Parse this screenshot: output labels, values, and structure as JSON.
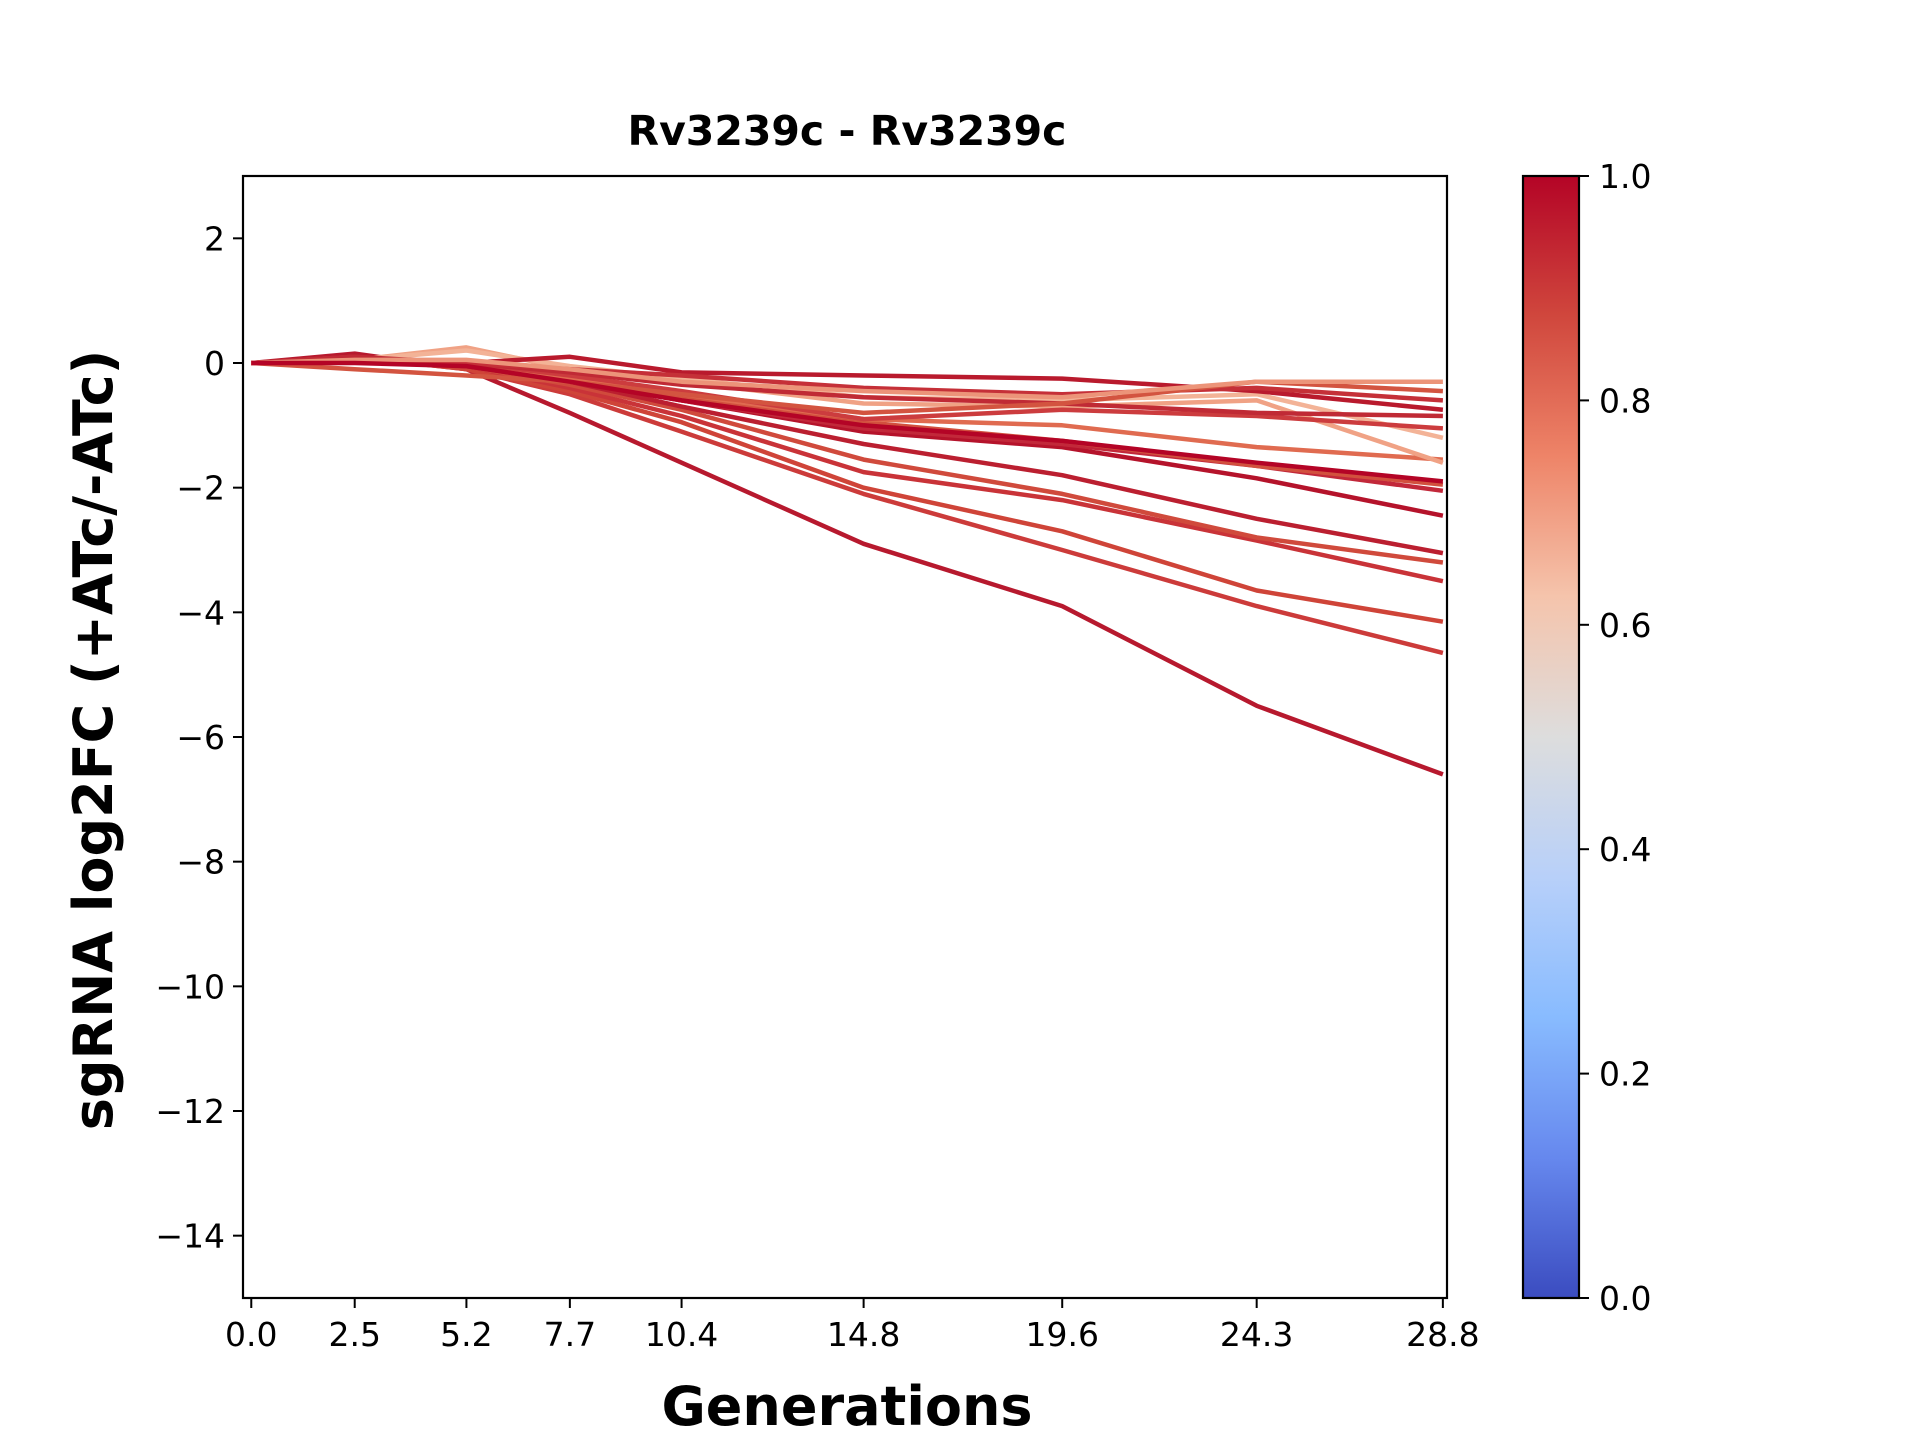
{
  "chart_data": {
    "type": "line",
    "title": "Rv3239c - Rv3239c",
    "xlabel": "Generations",
    "ylabel": "sgRNA log2FC (+ATc/-ATc)",
    "x": [
      0.0,
      2.5,
      5.2,
      7.7,
      10.4,
      14.8,
      19.6,
      24.3,
      28.8
    ],
    "x_tick_labels": [
      "0.0",
      "2.5",
      "5.2",
      "7.7",
      "10.4",
      "14.8",
      "19.6",
      "24.3",
      "28.8"
    ],
    "xlim": [
      -0.2,
      28.9
    ],
    "ylim": [
      -15,
      3
    ],
    "y_ticks": [
      2,
      0,
      -2,
      -4,
      -6,
      -8,
      -10,
      -12,
      -14
    ],
    "y_tick_labels": [
      "2",
      "0",
      "−2",
      "−4",
      "−6",
      "−8",
      "−10",
      "−12",
      "−14"
    ],
    "colorbar": {
      "colormap": "coolwarm",
      "range": [
        0.0,
        1.0
      ],
      "ticks": [
        0.0,
        0.2,
        0.4,
        0.6,
        0.8,
        1.0
      ],
      "tick_labels": [
        "0.0",
        "0.2",
        "0.4",
        "0.6",
        "0.8",
        "1.0"
      ],
      "stops": [
        "#3b4cc0",
        "#6688ee",
        "#88bbff",
        "#b8d0f9",
        "#dddddd",
        "#f5c4ac",
        "#ee8468",
        "#d0473d",
        "#b40426"
      ]
    },
    "grid": false,
    "legend": "none",
    "series": [
      {
        "color": "#b7192e",
        "values": [
          0.0,
          0.15,
          -0.1,
          -0.8,
          -1.6,
          -2.9,
          -3.9,
          -5.5,
          -6.6
        ]
      },
      {
        "color": "#cc3b3a",
        "values": [
          0.0,
          0.1,
          -0.1,
          -0.5,
          -1.1,
          -2.1,
          -3.0,
          -3.9,
          -4.65
        ]
      },
      {
        "color": "#cf4438",
        "values": [
          0.0,
          0.1,
          -0.1,
          -0.45,
          -0.95,
          -2.0,
          -2.7,
          -3.65,
          -4.15
        ]
      },
      {
        "color": "#c93338",
        "values": [
          0.0,
          0.05,
          -0.05,
          -0.4,
          -0.85,
          -1.75,
          -2.2,
          -2.85,
          -3.5
        ]
      },
      {
        "color": "#d04a3c",
        "values": [
          0.0,
          0.05,
          -0.05,
          -0.35,
          -0.75,
          -1.55,
          -2.1,
          -2.8,
          -3.2
        ]
      },
      {
        "color": "#bb1f30",
        "values": [
          0.0,
          0.1,
          0.0,
          -0.3,
          -0.7,
          -1.3,
          -1.8,
          -2.5,
          -3.05
        ]
      },
      {
        "color": "#b5132b",
        "values": [
          0.0,
          0.05,
          -0.05,
          -0.3,
          -0.6,
          -1.1,
          -1.35,
          -1.85,
          -2.45
        ]
      },
      {
        "color": "#c2283a",
        "values": [
          0.0,
          0.05,
          -0.05,
          -0.25,
          -0.6,
          -1.05,
          -1.3,
          -1.65,
          -2.05
        ]
      },
      {
        "color": "#d2503e",
        "values": [
          0.0,
          0.05,
          0.0,
          -0.3,
          -0.55,
          -0.95,
          -1.25,
          -1.65,
          -1.95
        ]
      },
      {
        "color": "#e06b50",
        "values": [
          0.0,
          0.05,
          0.0,
          -0.25,
          -0.5,
          -0.9,
          -1.0,
          -1.35,
          -1.55
        ]
      },
      {
        "color": "#f0a285",
        "values": [
          0.0,
          0.05,
          0.25,
          -0.1,
          -0.3,
          -0.65,
          -0.7,
          -0.6,
          -1.6
        ]
      },
      {
        "color": "#f3b397",
        "values": [
          0.0,
          0.05,
          0.2,
          -0.05,
          -0.25,
          -0.55,
          -0.6,
          -0.5,
          -1.2
        ]
      },
      {
        "color": "#cc3c3e",
        "values": [
          0.0,
          0.05,
          0.0,
          -0.2,
          -0.45,
          -0.9,
          -0.75,
          -0.85,
          -1.05
        ]
      },
      {
        "color": "#c02a35",
        "values": [
          0.0,
          0.1,
          0.0,
          -0.15,
          -0.35,
          -0.55,
          -0.65,
          -0.8,
          -0.85
        ]
      },
      {
        "color": "#b91a2d",
        "values": [
          0.0,
          0.05,
          0.0,
          0.1,
          -0.15,
          -0.2,
          -0.25,
          -0.45,
          -0.75
        ]
      },
      {
        "color": "#c53038",
        "values": [
          0.0,
          0.05,
          0.0,
          -0.1,
          -0.2,
          -0.4,
          -0.5,
          -0.4,
          -0.6
        ]
      },
      {
        "color": "#d35440",
        "values": [
          0.0,
          -0.1,
          -0.2,
          -0.3,
          -0.5,
          -0.8,
          -0.65,
          -0.3,
          -0.45
        ]
      },
      {
        "color": "#ec9479",
        "values": [
          0.0,
          0.05,
          0.05,
          -0.1,
          -0.3,
          -0.45,
          -0.55,
          -0.3,
          -0.3
        ]
      },
      {
        "color": "#b40426",
        "values": [
          0.0,
          0.0,
          -0.05,
          -0.3,
          -0.6,
          -1.0,
          -1.25,
          -1.6,
          -1.9
        ]
      }
    ]
  }
}
